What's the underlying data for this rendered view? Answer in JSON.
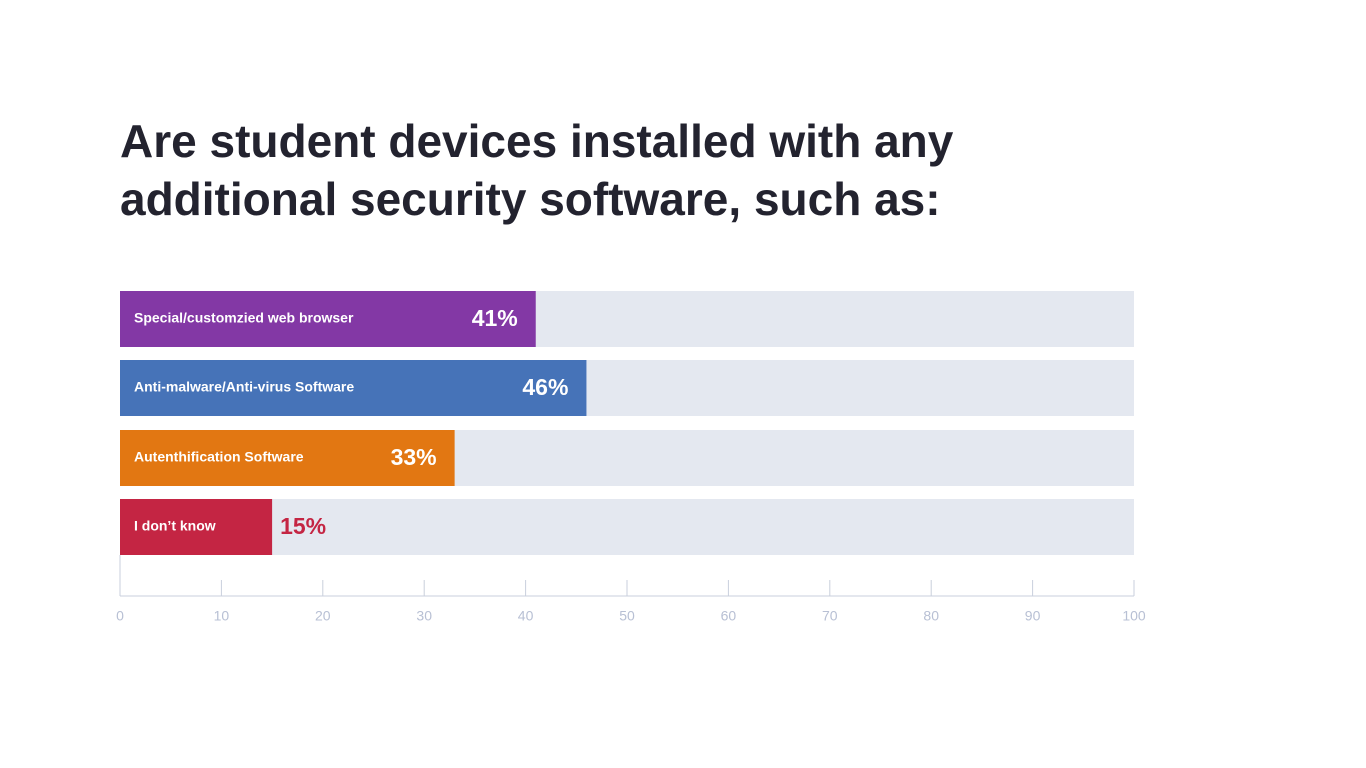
{
  "chart_data": {
    "type": "hbar",
    "title": "Are student devices installed with any additional security software, such as:",
    "categories": [
      "Special/customzied web browser",
      "Anti-malware/Anti-virus Software",
      "Autenthification Software",
      "I don’t know"
    ],
    "values": [
      41,
      46,
      33,
      15
    ],
    "value_labels": [
      "41%",
      "46%",
      "33%",
      "15%"
    ],
    "colors": [
      "#8338a5",
      "#4673b8",
      "#e27712",
      "#c42543"
    ],
    "track_color": "#e4e8f0",
    "xlim": [
      0,
      100
    ],
    "xticks": [
      0,
      10,
      20,
      30,
      40,
      50,
      60,
      70,
      80,
      90,
      100
    ]
  }
}
